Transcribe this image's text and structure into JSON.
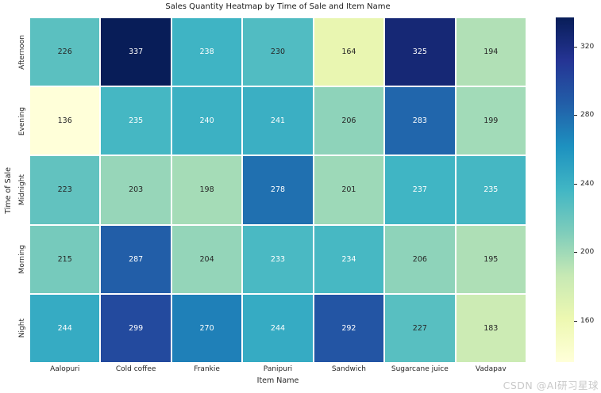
{
  "watermark": "CSDN @AI研习星球",
  "chart_data": {
    "type": "heatmap",
    "title": "Sales Quantity Heatmap by Time of Sale and Item Name",
    "xlabel": "Item Name",
    "ylabel": "Time of Sale",
    "columns": [
      "Aalopuri",
      "Cold coffee",
      "Frankie",
      "Panipuri",
      "Sandwich",
      "Sugarcane juice",
      "Vadapav"
    ],
    "rows": [
      "Afternoon",
      "Evening",
      "Midnight",
      "Morning",
      "Night"
    ],
    "values": [
      [
        226,
        337,
        238,
        230,
        164,
        325,
        194
      ],
      [
        136,
        235,
        240,
        241,
        206,
        283,
        199
      ],
      [
        223,
        203,
        198,
        278,
        201,
        237,
        235
      ],
      [
        215,
        287,
        204,
        233,
        234,
        206,
        195
      ],
      [
        244,
        299,
        270,
        244,
        292,
        227,
        183
      ]
    ],
    "vmin": 136,
    "vmax": 337,
    "colormap_name": "YlGnBu",
    "colormap_anchors": [
      "#ffffd9",
      "#edf8b1",
      "#c7e9b4",
      "#7fcdbb",
      "#41b6c4",
      "#1d91c0",
      "#225ea8",
      "#253494",
      "#081d58"
    ],
    "colorbar_ticks": [
      320,
      280,
      240,
      200,
      160
    ],
    "annotation_text_colors": {
      "on_light": "#262626",
      "on_dark": "#ffffff"
    },
    "tick_label_color": "#262626",
    "background": "#ffffff",
    "legend_position": "right-colorbar",
    "grid_gap_color": "#ffffff"
  }
}
